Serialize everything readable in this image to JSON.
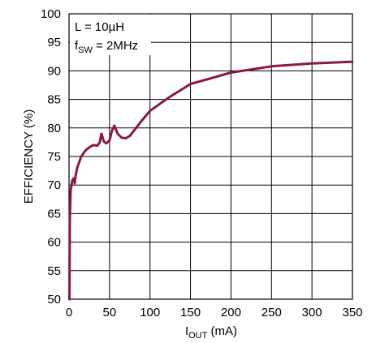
{
  "chart_data": {
    "type": "line",
    "xlabel": {
      "main": "I",
      "sub": "OUT",
      "unit": " (mA)"
    },
    "ylabel": "EFFICIENCY (%)",
    "xlim": [
      0,
      350
    ],
    "ylim": [
      50,
      100
    ],
    "xticks": [
      0,
      50,
      100,
      150,
      200,
      250,
      300,
      350
    ],
    "yticks": [
      50,
      55,
      60,
      65,
      70,
      75,
      80,
      85,
      90,
      95,
      100
    ],
    "grid": true,
    "annotations": {
      "line1": "L = 10µH",
      "line2": {
        "main": "f",
        "sub": "SW",
        "rest": " = 2MHz"
      }
    },
    "series": [
      {
        "color": "#8b1a3a",
        "points": [
          [
            0.5,
            50
          ],
          [
            1,
            64
          ],
          [
            2,
            69
          ],
          [
            4,
            70.8
          ],
          [
            6,
            71.2
          ],
          [
            7,
            70.3
          ],
          [
            8,
            71.5
          ],
          [
            10,
            73
          ],
          [
            15,
            75
          ],
          [
            20,
            76
          ],
          [
            25,
            76.6
          ],
          [
            30,
            77
          ],
          [
            35,
            76.9
          ],
          [
            38,
            77.5
          ],
          [
            40,
            79
          ],
          [
            43,
            77.6
          ],
          [
            46,
            77.3
          ],
          [
            50,
            77.8
          ],
          [
            53,
            79.5
          ],
          [
            56,
            80.4
          ],
          [
            60,
            79
          ],
          [
            65,
            78.3
          ],
          [
            70,
            78.2
          ],
          [
            75,
            78.6
          ],
          [
            80,
            79.5
          ],
          [
            90,
            81.3
          ],
          [
            100,
            83.0
          ],
          [
            125,
            85.5
          ],
          [
            150,
            87.7
          ],
          [
            175,
            88.7
          ],
          [
            200,
            89.7
          ],
          [
            250,
            90.8
          ],
          [
            300,
            91.3
          ],
          [
            350,
            91.6
          ]
        ]
      }
    ]
  }
}
